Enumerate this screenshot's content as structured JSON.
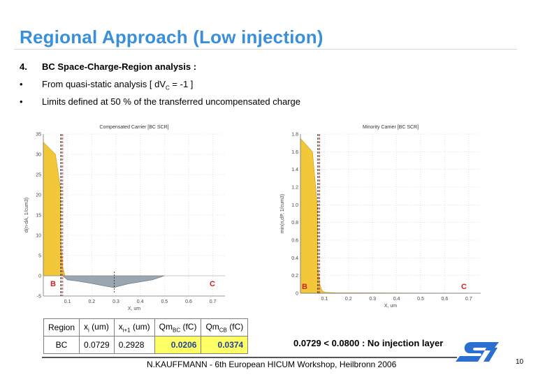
{
  "slide": {
    "title": "Regional Approach (Low injection)",
    "section_number": "4.",
    "section_heading": "BC Space-Charge-Region analysis :",
    "bullet_mark": "•",
    "bullet1_prefix": "From quasi-static analysis [ dV",
    "bullet1_sub": "C",
    "bullet1_suffix": " = -1 ]",
    "bullet2": "Limits defined at 50 % of the transferred uncompensated charge",
    "conclusion": "0.0729 < 0.0800 : No injection layer",
    "footer": "N.KAUFFMANN - 6th European HICUM Workshop, Heilbronn 2006",
    "page_number": "10",
    "logo": "st-logo-icon"
  },
  "chart_data": [
    {
      "type": "area",
      "title": "Compensated Carrier [BC SCR]",
      "xlabel": "X, um",
      "ylabel": "d(n-dA, 1/cum3)",
      "xlim": [
        0.0,
        0.75
      ],
      "ylim": [
        -5,
        35
      ],
      "xticks": [
        "0.1",
        "0.2",
        "0.3",
        "0.4",
        "0.5",
        "0.6",
        "0.7"
      ],
      "yticks": [
        "-5",
        "0",
        "5",
        "10",
        "15",
        "20",
        "25",
        "30",
        "35"
      ],
      "region_labels": [
        "B",
        "C"
      ],
      "series": [
        {
          "x": [
            0.0,
            0.05,
            0.07,
            0.0729,
            0.08,
            0.09,
            0.1,
            0.15,
            0.2,
            0.25,
            0.29,
            0.2928,
            0.31,
            0.35,
            0.4,
            0.45,
            0.5
          ],
          "y": [
            33,
            30,
            22,
            8,
            2,
            -0.5,
            -1.0,
            -1.4,
            -1.9,
            -2.5,
            -2.9,
            -2.9,
            -2.6,
            -2.0,
            -1.5,
            -1.0,
            0
          ]
        }
      ],
      "markers": {
        "dashed_black_x": 0.0729,
        "dashed_red_x": 0.08,
        "dashed_center_x": 0.2928
      }
    },
    {
      "type": "area",
      "title": "Minority Carrier [BC SCR]",
      "xlabel": "X, um",
      "ylabel": "min(n,dP, 1/cum3)",
      "xlim": [
        0.0,
        0.75
      ],
      "ylim": [
        0,
        1.8
      ],
      "xticks": [
        "0.1",
        "0.2",
        "0.3",
        "0.4",
        "0.5",
        "0.6",
        "0.7"
      ],
      "yticks": [
        "0",
        "0.2",
        "0.4",
        "0.6",
        "0.8",
        "1.0",
        "1.2",
        "1.4",
        "1.6",
        "1.8"
      ],
      "region_labels": [
        "B",
        "C"
      ],
      "series": [
        {
          "x": [
            0.0,
            0.05,
            0.07,
            0.0729,
            0.08,
            0.09,
            0.1,
            0.15,
            0.7
          ],
          "y": [
            1.75,
            1.6,
            1.0,
            0.3,
            0.1,
            0.03,
            0.01,
            0.005,
            0.0
          ]
        }
      ],
      "markers": {
        "dashed_black_x": 0.0729,
        "dashed_red_x": 0.08
      }
    }
  ],
  "table": {
    "headers": [
      {
        "main": "Region",
        "sub": ""
      },
      {
        "main": "x",
        "sub": "i",
        "tail": " (um)"
      },
      {
        "main": "x",
        "sub": "i+1",
        "tail": " (um)"
      },
      {
        "main": "Qm",
        "sub": "BC",
        "tail": " (fC)"
      },
      {
        "main": "Qm",
        "sub": "CB",
        "tail": " (fC)"
      }
    ],
    "rows": [
      [
        "BC",
        "0.0729",
        "0.2928",
        "0.0206",
        "0.0374"
      ]
    ]
  },
  "colors": {
    "title": "#3a8fd9",
    "fill_yellow": "#f2c83a",
    "fill_gray": "#9aa7b0",
    "dashed_red": "#cc2222",
    "label_red": "#cc2222",
    "highlight": "#ffff66",
    "highlight_text": "#1f3f9a",
    "logo_blue": "#2b6fd1"
  }
}
